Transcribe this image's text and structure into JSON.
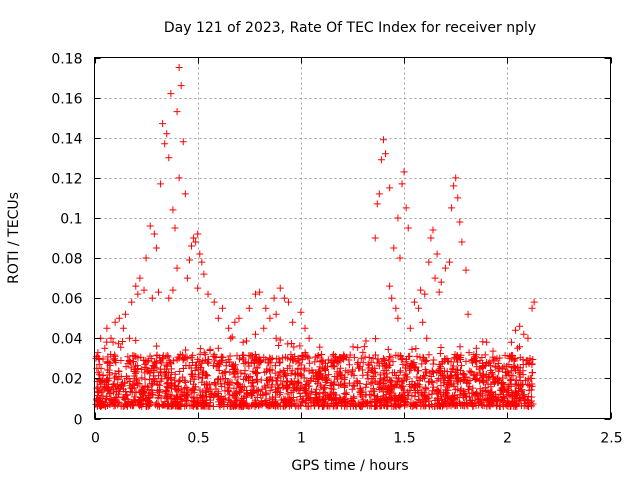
{
  "chart_data": {
    "type": "scatter",
    "title": "Day 121 of 2023, Rate Of TEC Index for receiver nply",
    "xlabel": "GPS time / hours",
    "ylabel": "ROTI / TECUs",
    "xlim": [
      0,
      2.5
    ],
    "ylim": [
      0,
      0.18
    ],
    "x_ticks": [
      0,
      0.5,
      1,
      1.5,
      2,
      2.5
    ],
    "x_tick_labels": [
      "0",
      "0.5",
      "1",
      "1.5",
      "2",
      "2.5"
    ],
    "y_ticks": [
      0,
      0.02,
      0.04,
      0.06,
      0.08,
      0.1,
      0.12,
      0.14,
      0.16,
      0.18
    ],
    "y_tick_labels": [
      "0",
      "0.02",
      "0.04",
      "0.06",
      "0.08",
      "0.1",
      "0.12",
      "0.14",
      "0.16",
      "0.18"
    ],
    "grid": true,
    "marker": "+",
    "color": "#ff0000",
    "series": [
      {
        "points": [
          [
            0.33,
            0.147
          ],
          [
            0.35,
            0.142
          ],
          [
            0.36,
            0.13
          ],
          [
            0.32,
            0.117
          ],
          [
            0.34,
            0.137
          ],
          [
            0.37,
            0.162
          ],
          [
            0.38,
            0.104
          ],
          [
            0.39,
            0.095
          ],
          [
            0.41,
            0.175
          ],
          [
            0.42,
            0.166
          ],
          [
            0.4,
            0.153
          ],
          [
            0.43,
            0.138
          ],
          [
            0.41,
            0.12
          ],
          [
            0.44,
            0.112
          ],
          [
            0.4,
            0.075
          ],
          [
            0.38,
            0.064
          ],
          [
            0.3,
            0.085
          ],
          [
            0.29,
            0.092
          ],
          [
            0.27,
            0.096
          ],
          [
            0.25,
            0.08
          ],
          [
            0.22,
            0.07
          ],
          [
            0.2,
            0.066
          ],
          [
            0.24,
            0.064
          ],
          [
            0.28,
            0.06
          ],
          [
            0.18,
            0.058
          ],
          [
            0.21,
            0.062
          ],
          [
            0.31,
            0.063
          ],
          [
            0.36,
            0.06
          ],
          [
            0.47,
            0.086
          ],
          [
            0.48,
            0.09
          ],
          [
            0.5,
            0.092
          ],
          [
            0.49,
            0.088
          ],
          [
            0.51,
            0.082
          ],
          [
            0.52,
            0.078
          ],
          [
            0.46,
            0.079
          ],
          [
            0.53,
            0.072
          ],
          [
            0.45,
            0.07
          ],
          [
            0.5,
            0.065
          ],
          [
            0.55,
            0.062
          ],
          [
            0.58,
            0.058
          ],
          [
            0.6,
            0.05
          ],
          [
            0.62,
            0.055
          ],
          [
            0.65,
            0.045
          ],
          [
            0.68,
            0.048
          ],
          [
            0.7,
            0.05
          ],
          [
            0.66,
            0.04
          ],
          [
            0.75,
            0.055
          ],
          [
            0.78,
            0.062
          ],
          [
            0.8,
            0.063
          ],
          [
            0.83,
            0.055
          ],
          [
            0.85,
            0.05
          ],
          [
            0.87,
            0.06
          ],
          [
            0.9,
            0.065
          ],
          [
            0.92,
            0.06
          ],
          [
            0.94,
            0.058
          ],
          [
            0.88,
            0.052
          ],
          [
            0.96,
            0.048
          ],
          [
            1.0,
            0.053
          ],
          [
            1.02,
            0.045
          ],
          [
            1.04,
            0.04
          ],
          [
            0.82,
            0.045
          ],
          [
            0.78,
            0.042
          ],
          [
            0.05,
            0.035
          ],
          [
            0.08,
            0.04
          ],
          [
            0.1,
            0.048
          ],
          [
            0.12,
            0.05
          ],
          [
            0.14,
            0.045
          ],
          [
            0.15,
            0.052
          ],
          [
            0.06,
            0.045
          ],
          [
            0.03,
            0.04
          ],
          [
            0.17,
            0.04
          ],
          [
            0.02,
            0.03
          ],
          [
            0.09,
            0.038
          ],
          [
            1.4,
            0.139
          ],
          [
            1.41,
            0.132
          ],
          [
            1.39,
            0.129
          ],
          [
            1.43,
            0.115
          ],
          [
            1.38,
            0.112
          ],
          [
            1.37,
            0.107
          ],
          [
            1.5,
            0.123
          ],
          [
            1.49,
            0.117
          ],
          [
            1.51,
            0.105
          ],
          [
            1.52,
            0.095
          ],
          [
            1.47,
            0.1
          ],
          [
            1.36,
            0.09
          ],
          [
            1.48,
            0.08
          ],
          [
            1.45,
            0.085
          ],
          [
            1.43,
            0.066
          ],
          [
            1.44,
            0.06
          ],
          [
            1.46,
            0.055
          ],
          [
            1.47,
            0.05
          ],
          [
            1.75,
            0.12
          ],
          [
            1.74,
            0.116
          ],
          [
            1.76,
            0.11
          ],
          [
            1.77,
            0.098
          ],
          [
            1.78,
            0.088
          ],
          [
            1.73,
            0.105
          ],
          [
            1.63,
            0.09
          ],
          [
            1.64,
            0.094
          ],
          [
            1.66,
            0.082
          ],
          [
            1.62,
            0.078
          ],
          [
            1.65,
            0.07
          ],
          [
            1.68,
            0.068
          ],
          [
            1.6,
            0.062
          ],
          [
            1.58,
            0.064
          ],
          [
            1.7,
            0.075
          ],
          [
            1.72,
            0.078
          ],
          [
            1.67,
            0.063
          ],
          [
            1.8,
            0.074
          ],
          [
            1.81,
            0.052
          ],
          [
            1.55,
            0.058
          ],
          [
            1.57,
            0.055
          ],
          [
            1.59,
            0.048
          ],
          [
            1.53,
            0.045
          ],
          [
            1.61,
            0.04
          ],
          [
            1.85,
            0.035
          ],
          [
            1.9,
            0.038
          ],
          [
            1.95,
            0.03
          ],
          [
            2.04,
            0.044
          ],
          [
            2.06,
            0.046
          ],
          [
            2.08,
            0.042
          ],
          [
            2.1,
            0.04
          ],
          [
            2.12,
            0.055
          ],
          [
            2.13,
            0.058
          ],
          [
            2.05,
            0.035
          ],
          [
            2.02,
            0.038
          ],
          [
            2.11,
            0.03
          ],
          [
            0.6,
            0.035
          ],
          [
            0.72,
            0.038
          ],
          [
            0.88,
            0.04
          ],
          [
            1.1,
            0.032
          ],
          [
            1.2,
            0.03
          ],
          [
            1.3,
            0.033
          ],
          [
            1.35,
            0.03
          ]
        ]
      }
    ]
  }
}
